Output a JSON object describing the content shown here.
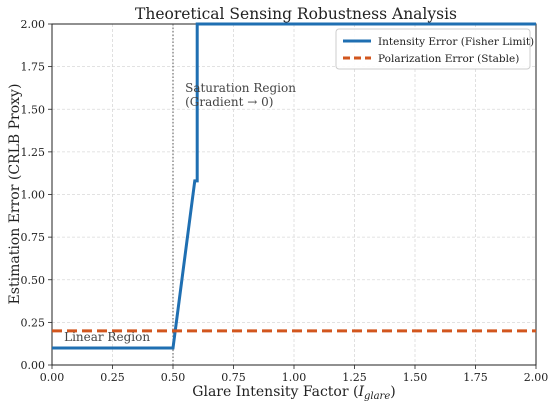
{
  "chart_data": {
    "type": "line",
    "title": "Theoretical Sensing Robustness Analysis",
    "xlabel_main": "Glare Intensity Factor (",
    "xlabel_var": "I",
    "xlabel_sub": "glare",
    "xlabel_close": ")",
    "ylabel": "Estimation Error (CRLB Proxy)",
    "xlim": [
      0,
      2
    ],
    "ylim": [
      0,
      2
    ],
    "xticks": [
      "0.00",
      "0.25",
      "0.50",
      "0.75",
      "1.00",
      "1.25",
      "1.50",
      "1.75",
      "2.00"
    ],
    "yticks": [
      "0.00",
      "0.25",
      "0.50",
      "0.75",
      "1.00",
      "1.25",
      "1.50",
      "1.75",
      "2.00"
    ],
    "grid": true,
    "legend_position": "top-right",
    "series": [
      {
        "name": "Intensity Error (Fisher Limit)",
        "color": "#1f6fb2",
        "style": "solid",
        "x": [
          0.0,
          0.5,
          0.59,
          0.6,
          0.6,
          2.0
        ],
        "y": [
          0.1,
          0.1,
          1.08,
          1.08,
          2.0,
          2.0
        ]
      },
      {
        "name": "Polarization Error (Stable)",
        "color": "#d2561e",
        "style": "dashed",
        "x": [
          0.0,
          2.0
        ],
        "y": [
          0.2,
          0.2
        ]
      }
    ],
    "vline": {
      "x": 0.5,
      "color": "#555555"
    },
    "annotations": [
      {
        "lines": [
          "Linear Region"
        ],
        "x": 0.05,
        "y": 0.14
      },
      {
        "lines": [
          "Saturation Region",
          "(Gradient → 0)"
        ],
        "x": 0.55,
        "y": 1.6
      }
    ]
  }
}
